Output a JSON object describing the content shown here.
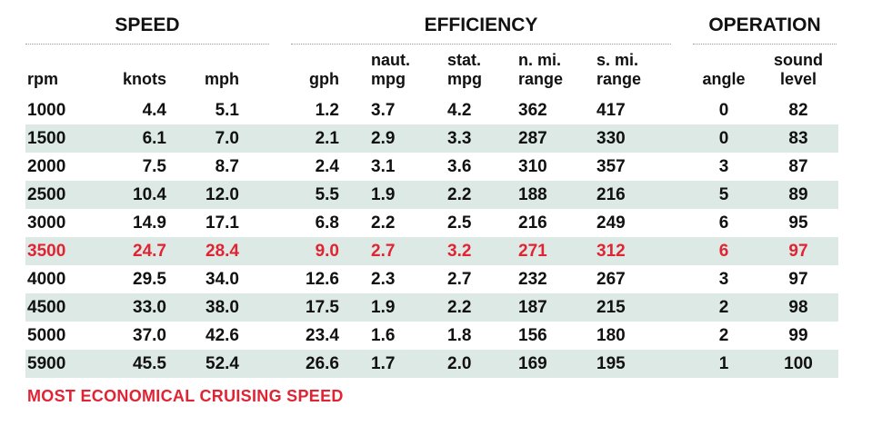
{
  "chart_data": {
    "type": "table",
    "groups": [
      {
        "key": "speed",
        "label": "SPEED"
      },
      {
        "key": "efficiency",
        "label": "EFFICIENCY"
      },
      {
        "key": "operation",
        "label": "OPERATION"
      }
    ],
    "columns": [
      {
        "key": "rpm",
        "lines": [
          "rpm"
        ]
      },
      {
        "key": "knots",
        "lines": [
          "knots"
        ]
      },
      {
        "key": "mph",
        "lines": [
          "mph"
        ]
      },
      {
        "key": "gph",
        "lines": [
          "gph"
        ]
      },
      {
        "key": "naut_mpg",
        "lines": [
          "naut.",
          "mpg"
        ]
      },
      {
        "key": "stat_mpg",
        "lines": [
          "stat.",
          "mpg"
        ]
      },
      {
        "key": "n_mi_range",
        "lines": [
          "n. mi.",
          "range"
        ]
      },
      {
        "key": "s_mi_range",
        "lines": [
          "s. mi.",
          "range"
        ]
      },
      {
        "key": "angle",
        "lines": [
          "angle"
        ]
      },
      {
        "key": "sound_level",
        "lines": [
          "sound",
          "level"
        ]
      }
    ],
    "rows": [
      [
        "1000",
        "4.4",
        "5.1",
        "1.2",
        "3.7",
        "4.2",
        "362",
        "417",
        "0",
        "82"
      ],
      [
        "1500",
        "6.1",
        "7.0",
        "2.1",
        "2.9",
        "3.3",
        "287",
        "330",
        "0",
        "83"
      ],
      [
        "2000",
        "7.5",
        "8.7",
        "2.4",
        "3.1",
        "3.6",
        "310",
        "357",
        "3",
        "87"
      ],
      [
        "2500",
        "10.4",
        "12.0",
        "5.5",
        "1.9",
        "2.2",
        "188",
        "216",
        "5",
        "89"
      ],
      [
        "3000",
        "14.9",
        "17.1",
        "6.8",
        "2.2",
        "2.5",
        "216",
        "249",
        "6",
        "95"
      ],
      [
        "3500",
        "24.7",
        "28.4",
        "9.0",
        "2.7",
        "3.2",
        "271",
        "312",
        "6",
        "97"
      ],
      [
        "4000",
        "29.5",
        "34.0",
        "12.6",
        "2.3",
        "2.7",
        "232",
        "267",
        "3",
        "97"
      ],
      [
        "4500",
        "33.0",
        "38.0",
        "17.5",
        "1.9",
        "2.2",
        "187",
        "215",
        "2",
        "98"
      ],
      [
        "5000",
        "37.0",
        "42.6",
        "23.4",
        "1.6",
        "1.8",
        "156",
        "180",
        "2",
        "99"
      ],
      [
        "5900",
        "45.5",
        "52.4",
        "26.6",
        "1.7",
        "2.0",
        "169",
        "195",
        "1",
        "100"
      ]
    ],
    "highlight_row": 5,
    "highlight_color": "#e02434",
    "stripe_color": "#dde9e5",
    "footnote": "MOST ECONOMICAL CRUISING SPEED"
  }
}
